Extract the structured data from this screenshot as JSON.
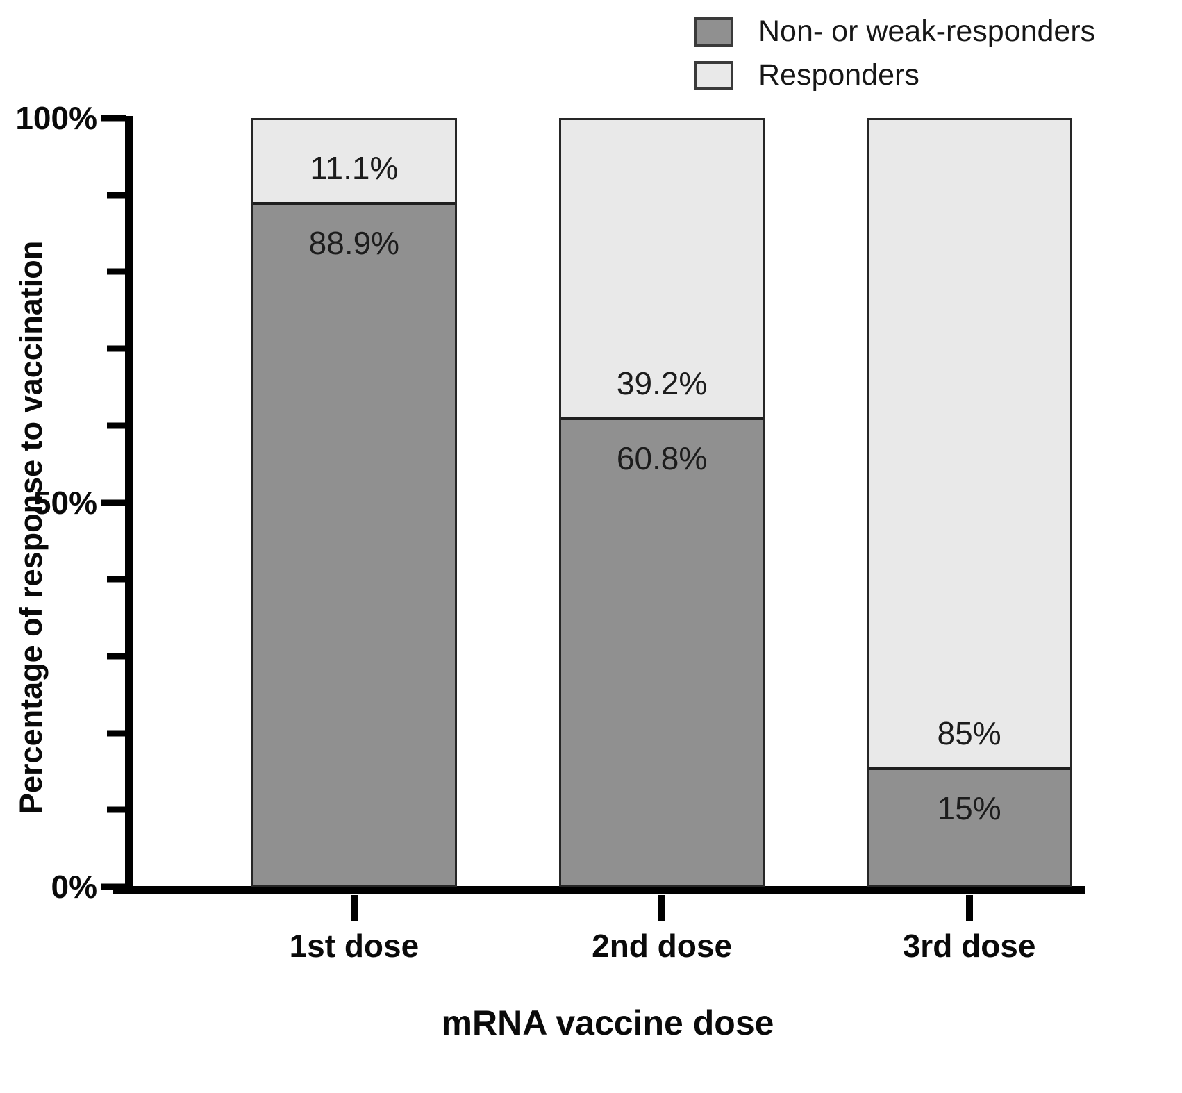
{
  "chart_data": {
    "type": "bar",
    "stacked": true,
    "title": "",
    "xlabel": "mRNA vaccine dose",
    "ylabel": "Percentage of response to vaccination",
    "categories": [
      "1st dose",
      "2nd dose",
      "3rd dose"
    ],
    "series": [
      {
        "name": "Non- or weak-responders",
        "color": "#909090",
        "values": [
          88.9,
          60.8,
          15
        ]
      },
      {
        "name": "Responders",
        "color": "#e9e9e9",
        "values": [
          11.1,
          39.2,
          85
        ]
      }
    ],
    "value_labels": [
      {
        "category": "1st dose",
        "responders": "11.1%",
        "non_responders": "88.9%"
      },
      {
        "category": "2nd dose",
        "responders": "39.2%",
        "non_responders": "60.8%"
      },
      {
        "category": "3rd dose",
        "responders": "85%",
        "non_responders": "15%"
      }
    ],
    "y_axis": {
      "min": 0,
      "max": 100,
      "major_ticks": [
        "0%",
        "50%",
        "100%"
      ],
      "minor_tick_step": 10
    },
    "legend_position": "top-right",
    "grid": false
  }
}
